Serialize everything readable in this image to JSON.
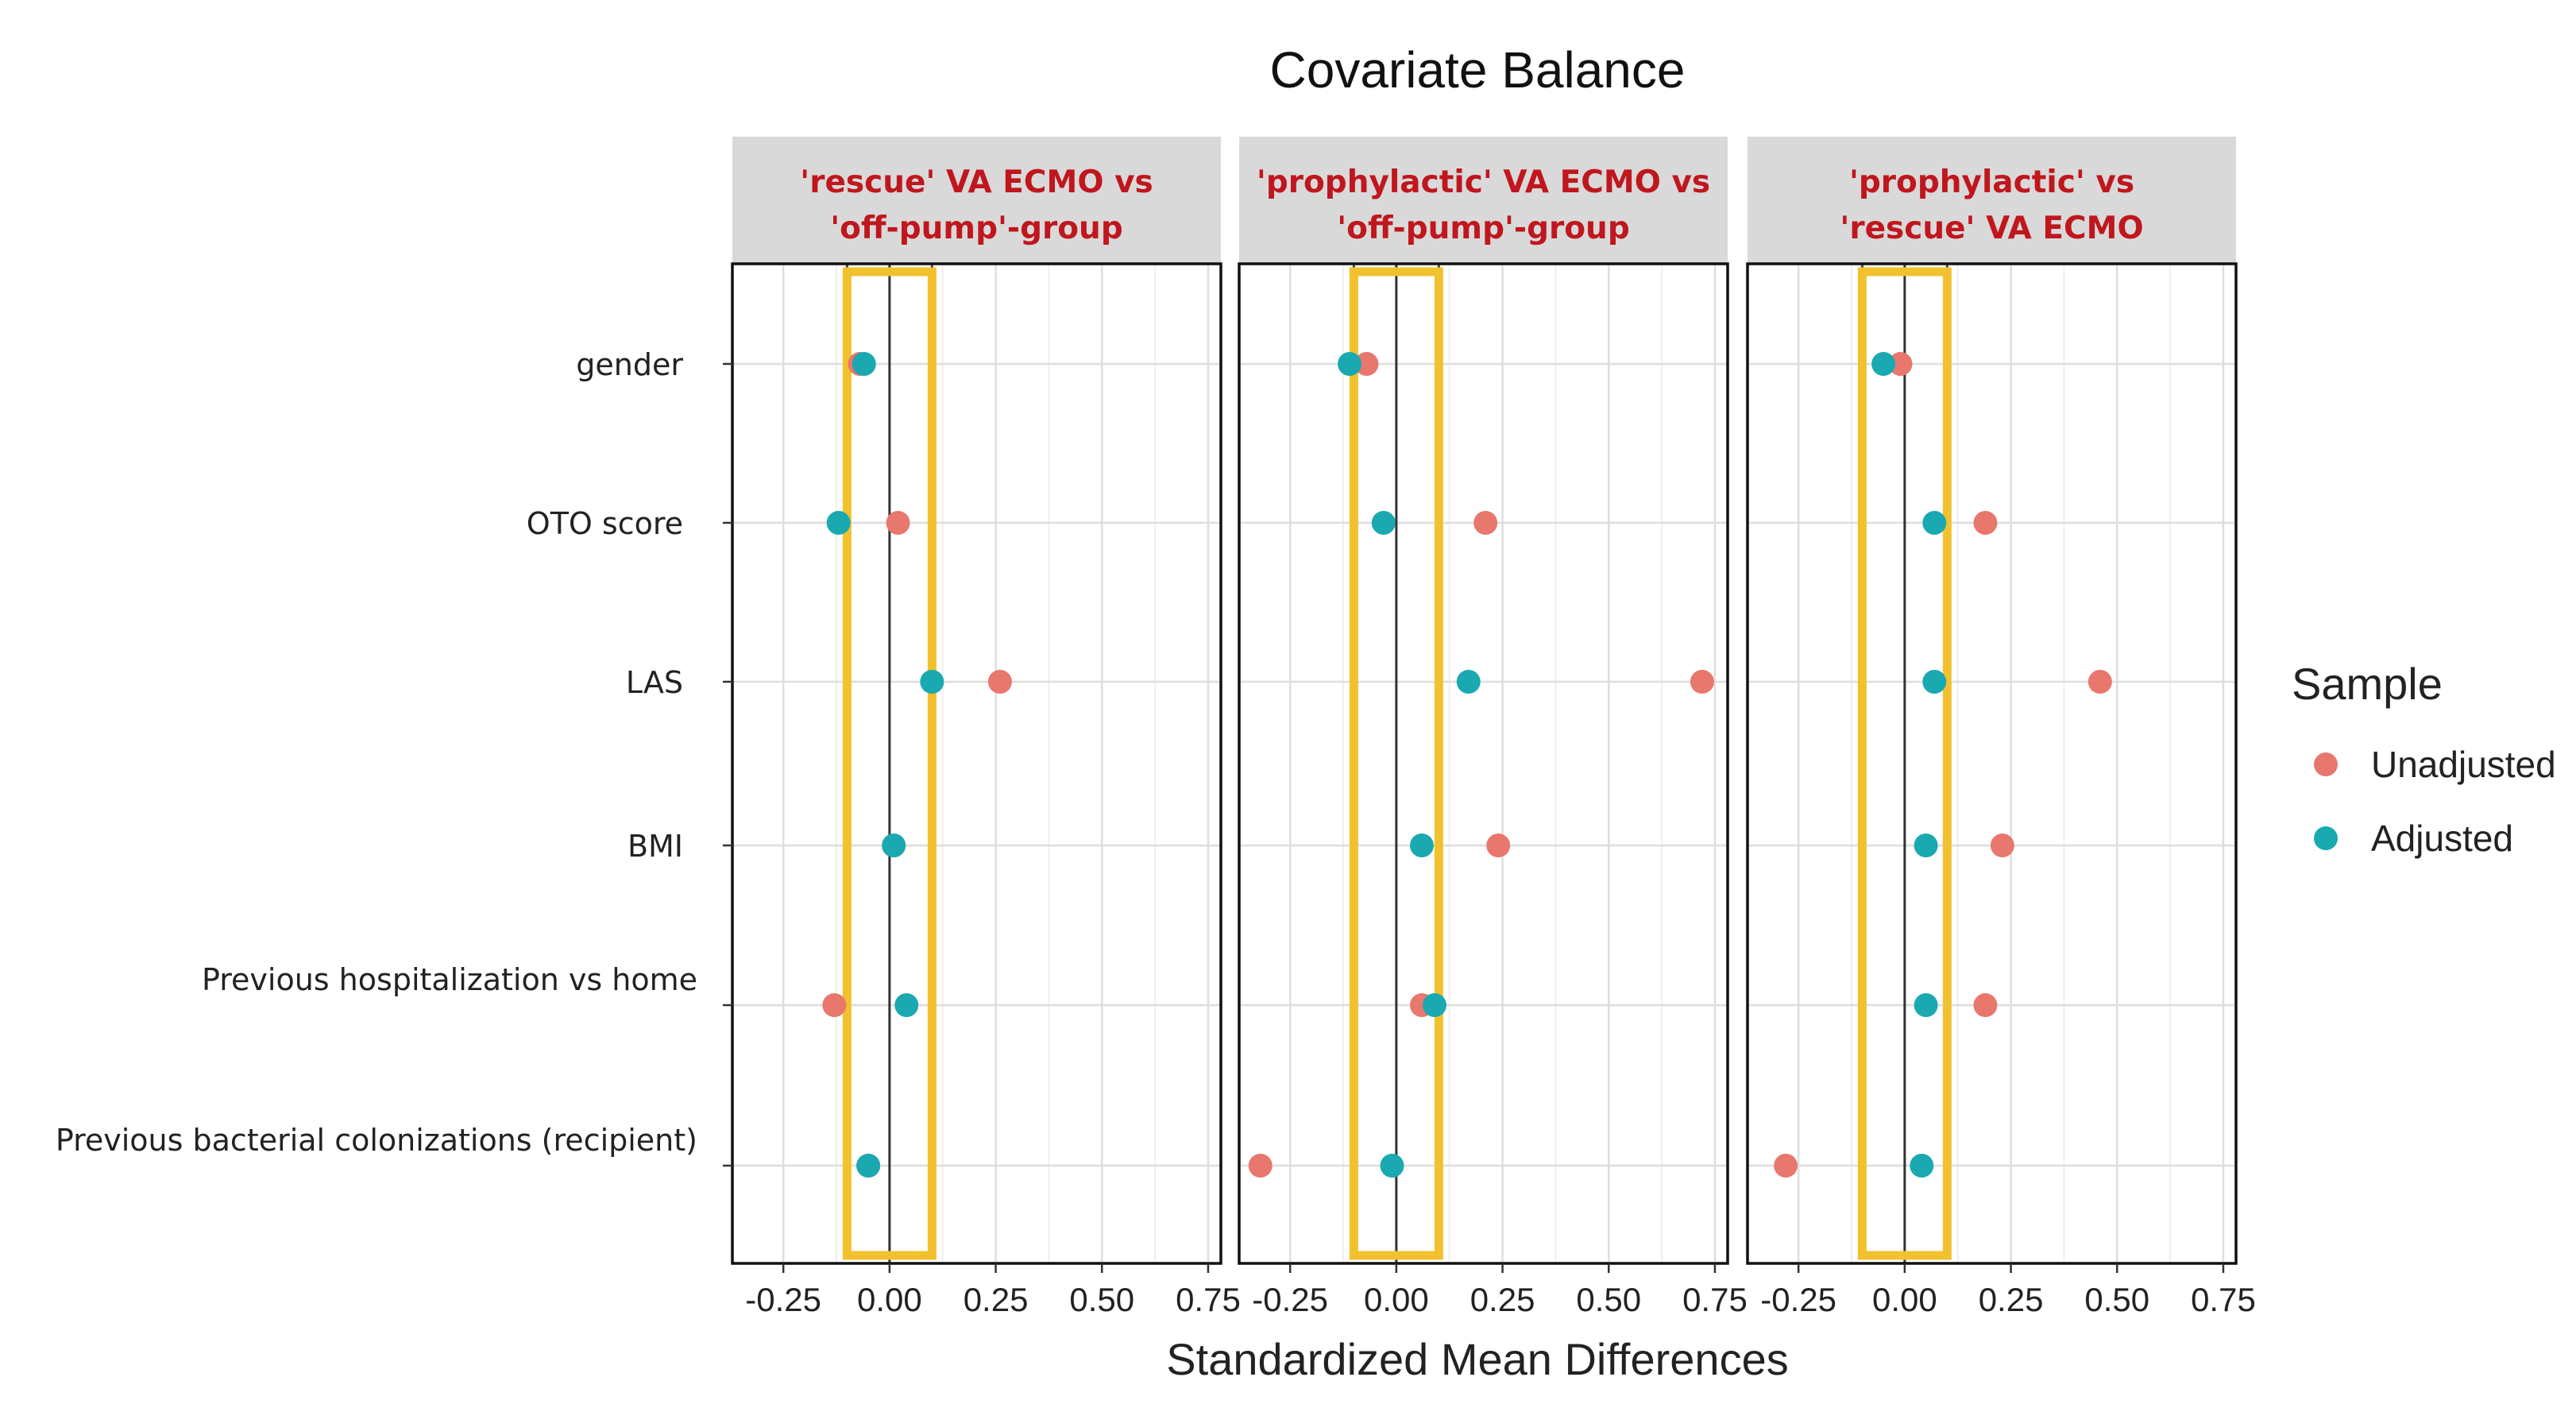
{
  "chart_data": {
    "type": "scatter",
    "title": "Covariate Balance",
    "xlabel": "Standardized Mean Differences",
    "xlim": [
      -0.37,
      0.78
    ],
    "x_ticks": [
      -0.25,
      0.0,
      0.25,
      0.5,
      0.75
    ],
    "x_tick_labels": [
      "-0.25",
      "0.00",
      "0.25",
      "0.50",
      "0.75"
    ],
    "threshold": 0.1,
    "highlight_color": "#f2c12e",
    "covariates": [
      "gender",
      "OTO score",
      "LAS",
      "BMI",
      "Previous hospitalization vs home",
      "Previous bacterial colonizations (recipient)"
    ],
    "legend": {
      "title": "Sample",
      "items": [
        {
          "name": "Unadjusted",
          "color": "#e8776e"
        },
        {
          "name": "Adjusted",
          "color": "#1aa9b1"
        }
      ]
    },
    "panels": [
      {
        "title_line1": "'rescue' VA ECMO vs",
        "title_line2": "'off-pump'-group",
        "series": [
          {
            "name": "Unadjusted",
            "values": [
              -0.07,
              0.02,
              0.26,
              0.01,
              -0.13,
              -0.05
            ]
          },
          {
            "name": "Adjusted",
            "values": [
              -0.06,
              -0.12,
              0.1,
              0.01,
              0.04,
              -0.05
            ]
          }
        ]
      },
      {
        "title_line1": "'prophylactic' VA ECMO vs",
        "title_line2": "'off-pump'-group",
        "series": [
          {
            "name": "Unadjusted",
            "values": [
              -0.07,
              0.21,
              0.72,
              0.24,
              0.06,
              -0.32
            ]
          },
          {
            "name": "Adjusted",
            "values": [
              -0.11,
              -0.03,
              0.17,
              0.06,
              0.09,
              -0.01
            ]
          }
        ]
      },
      {
        "title_line1": "'prophylactic' vs",
        "title_line2": "'rescue' VA ECMO",
        "series": [
          {
            "name": "Unadjusted",
            "values": [
              -0.01,
              0.19,
              0.46,
              0.23,
              0.19,
              -0.28
            ]
          },
          {
            "name": "Adjusted",
            "values": [
              -0.05,
              0.07,
              0.07,
              0.05,
              0.05,
              0.04
            ]
          }
        ]
      }
    ]
  }
}
